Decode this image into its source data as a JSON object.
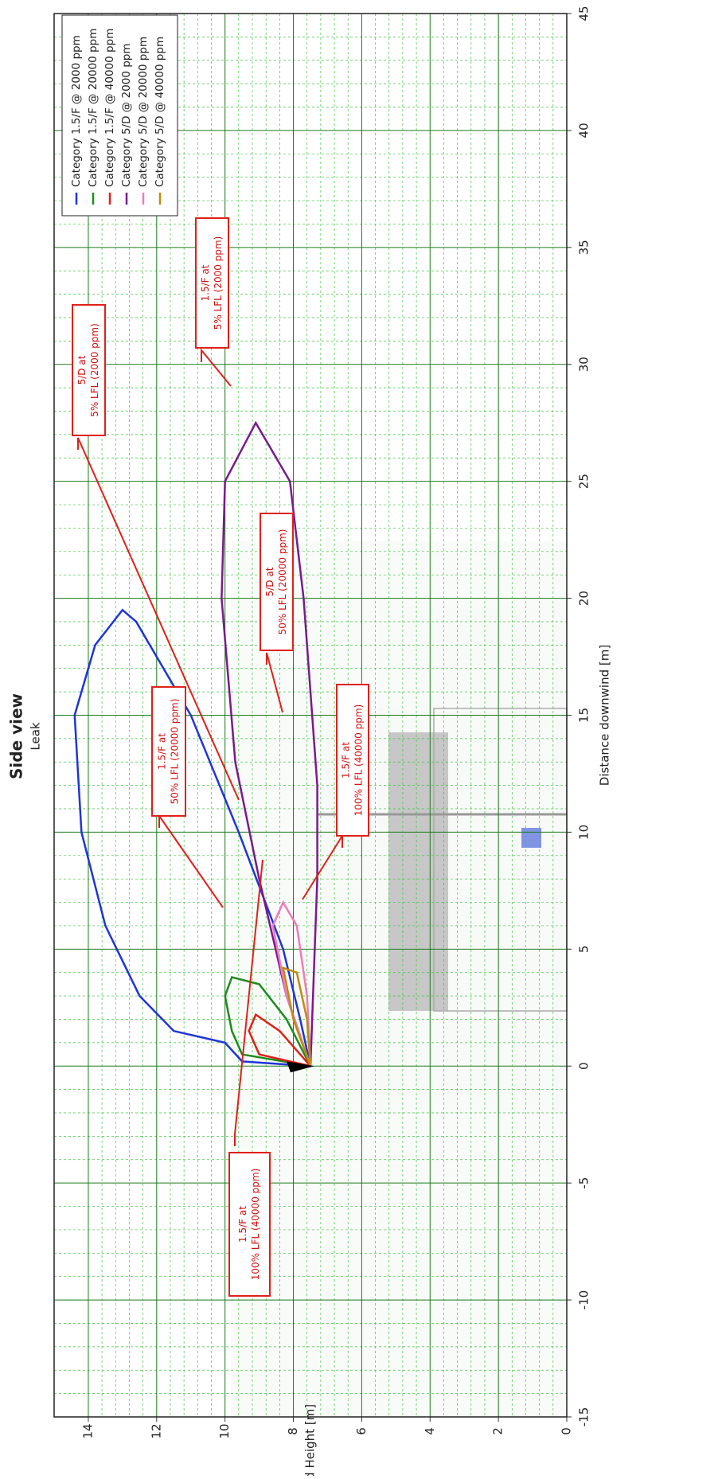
{
  "chart_data": {
    "type": "line",
    "title": "Side view",
    "subtitle": "Leak",
    "x_label": "Distance downwind [m]",
    "y_label": "Cloud Height [m]",
    "xlim": [
      -15,
      45
    ],
    "xticks": [
      -15,
      -10,
      -5,
      0,
      5,
      10,
      15,
      20,
      25,
      30,
      35,
      40,
      45
    ],
    "ylim": [
      0,
      15
    ],
    "yticks": [
      0,
      2,
      4,
      6,
      8,
      10,
      12,
      14
    ],
    "grid": true,
    "legend": "upper left",
    "series": [
      {
        "name": "Category 1.5/F @ 2000 ppm",
        "color": "#1f35d6",
        "x": [
          0,
          0.2,
          1,
          1.5,
          3,
          6,
          10,
          15,
          18,
          19.5,
          19,
          15,
          10,
          5,
          2,
          0
        ],
        "values": [
          7.5,
          9.5,
          10,
          11.5,
          12.5,
          13.5,
          14.2,
          14.4,
          13.8,
          13,
          12.6,
          11,
          9.6,
          8.3,
          7.8,
          7.5
        ]
      },
      {
        "name": "Category 1.5/F @ 20000 ppm",
        "color": "#1e8a1e",
        "x": [
          0,
          0.5,
          1.5,
          3,
          3.8,
          3.5,
          2,
          0
        ],
        "values": [
          7.5,
          9.5,
          9.8,
          10,
          9.8,
          9,
          8.2,
          7.5
        ]
      },
      {
        "name": "Category 1.5/F @ 40000 ppm",
        "color": "#e0201a",
        "x": [
          0,
          0.5,
          1.5,
          2.2,
          1.5,
          0
        ],
        "values": [
          7.5,
          9,
          9.3,
          9.1,
          8.4,
          7.5
        ]
      },
      {
        "name": "Category 5/D @ 2000 ppm",
        "color": "#7a1a8c",
        "x": [
          0,
          3,
          8,
          13,
          20,
          25,
          27.5,
          25,
          20,
          12,
          8,
          4,
          0
        ],
        "values": [
          7.5,
          8.2,
          9,
          9.7,
          10.1,
          10,
          9.1,
          8.1,
          7.7,
          7.3,
          7.3,
          7.4,
          7.5
        ]
      },
      {
        "name": "Category 5/D @ 20000 ppm",
        "color": "#f07ab8",
        "x": [
          0,
          3,
          6,
          7,
          6,
          3,
          0
        ],
        "values": [
          7.5,
          8.2,
          8.6,
          8.3,
          7.9,
          7.6,
          7.5
        ]
      },
      {
        "name": "Category 5/D @ 40000 ppm",
        "color": "#c08a10",
        "x": [
          0,
          2,
          4.2,
          4,
          2,
          0
        ],
        "values": [
          7.5,
          8,
          8.3,
          7.9,
          7.6,
          7.5
        ]
      }
    ],
    "annotations": [
      {
        "lines": [
          "1.5/F at",
          "5% LFL (2000 ppm)"
        ]
      },
      {
        "lines": [
          "5/D at",
          "5% LFL (2000 ppm)"
        ]
      },
      {
        "lines": [
          "5/D at",
          "50% LFL (20000 ppm)"
        ]
      },
      {
        "lines": [
          "1.5/F at",
          "50% LFL (20000 ppm)"
        ]
      },
      {
        "lines": [
          "1.5/F at",
          "100% LFL (40000 ppm)"
        ]
      },
      {
        "lines": [
          "1.5/F at",
          "100% LFL (40000 ppm)"
        ]
      }
    ]
  }
}
